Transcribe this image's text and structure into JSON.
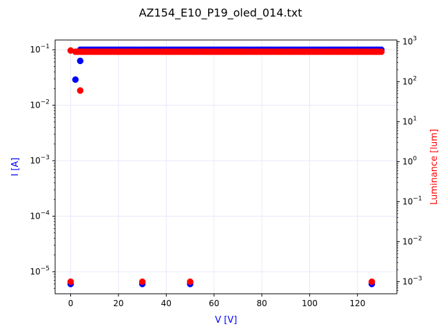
{
  "chart_data": {
    "type": "scatter",
    "title": "AZ154_E10_P19_oled_014.txt",
    "xlabel": "V [V]",
    "ylabel_left": "I [A]",
    "ylabel_right": "Luminance [lum]",
    "xlim": [
      -6.5,
      136.5
    ],
    "ylim_left": [
      4e-06,
      0.15
    ],
    "ylim_right": [
      0.0005,
      1100
    ],
    "yscale_left": "log",
    "yscale_right": "log",
    "grid": true,
    "x_ticks": [
      "0",
      "20",
      "40",
      "60",
      "80",
      "100",
      "120"
    ],
    "x_tick_values": [
      0,
      20,
      40,
      60,
      80,
      100,
      120
    ],
    "y_left_tick_values": [
      1e-05,
      0.0001,
      0.001,
      0.01,
      0.1
    ],
    "y_left_tick_labels": [
      {
        "base": "10",
        "exp": "−5"
      },
      {
        "base": "10",
        "exp": "−4"
      },
      {
        "base": "10",
        "exp": "−3"
      },
      {
        "base": "10",
        "exp": "−2"
      },
      {
        "base": "10",
        "exp": "−1"
      }
    ],
    "y_right_tick_values": [
      0.001,
      0.01,
      0.1,
      1,
      10,
      100,
      1000
    ],
    "y_right_tick_labels": [
      {
        "base": "10",
        "exp": "−3"
      },
      {
        "base": "10",
        "exp": "−2"
      },
      {
        "base": "10",
        "exp": "−1"
      },
      {
        "base": "10",
        "exp": "0"
      },
      {
        "base": "10",
        "exp": "1"
      },
      {
        "base": "10",
        "exp": "2"
      },
      {
        "base": "10",
        "exp": "3"
      }
    ],
    "series": [
      {
        "color": "#0000ff",
        "axis": "left",
        "dense_range": {
          "x_start": 4,
          "x_end": 130,
          "step": 1,
          "y": 0.1
        },
        "points": [
          [
            0,
            6e-06
          ],
          [
            2,
            0.029
          ],
          [
            4,
            0.063
          ],
          [
            30,
            6e-06
          ],
          [
            50,
            6e-06
          ],
          [
            126,
            6e-06
          ]
        ]
      },
      {
        "color": "#ff0000",
        "axis": "right",
        "dense_range": {
          "x_start": 2,
          "x_end": 130,
          "step": 1,
          "y": 560
        },
        "points": [
          [
            0,
            600
          ],
          [
            4,
            60
          ],
          [
            0,
            0.001
          ],
          [
            30,
            0.001
          ],
          [
            50,
            0.001
          ],
          [
            126,
            0.001
          ]
        ]
      }
    ]
  },
  "colors": {
    "left_axis_label": "#0000ff",
    "right_axis_label": "#ff0000",
    "grid": "#e8e8fb",
    "spine": "#000000"
  }
}
